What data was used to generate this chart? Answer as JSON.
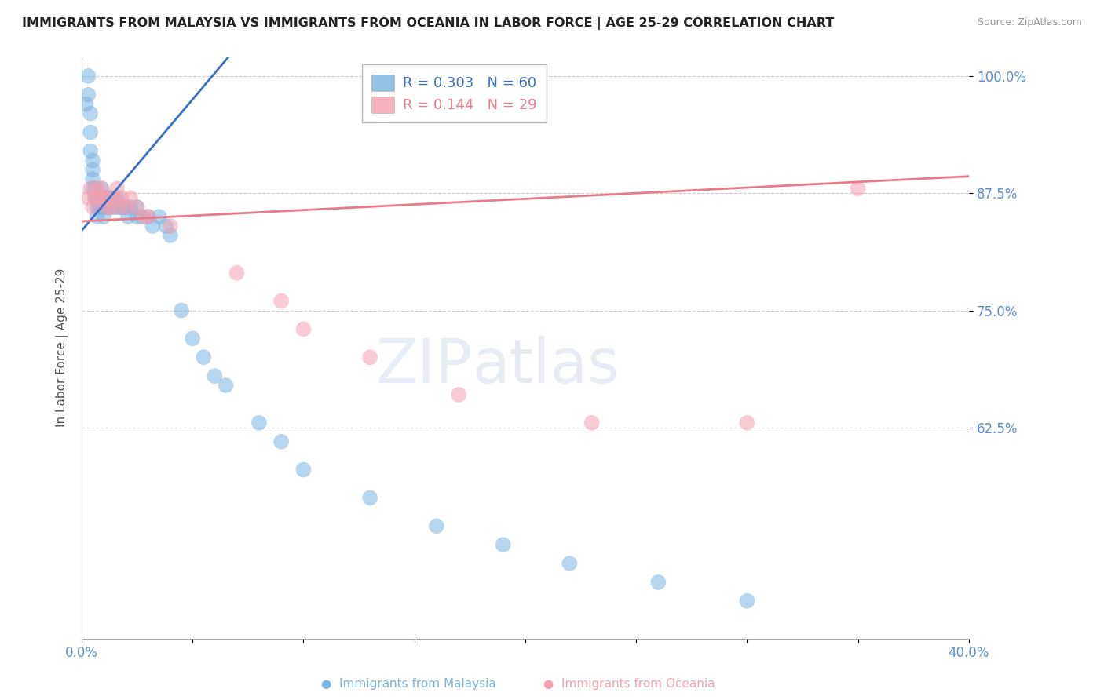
{
  "title": "IMMIGRANTS FROM MALAYSIA VS IMMIGRANTS FROM OCEANIA IN LABOR FORCE | AGE 25-29 CORRELATION CHART",
  "source": "Source: ZipAtlas.com",
  "ylabel": "In Labor Force | Age 25-29",
  "r_malaysia": 0.303,
  "n_malaysia": 60,
  "r_oceania": 0.144,
  "n_oceania": 29,
  "xlim": [
    0.0,
    0.4
  ],
  "ylim": [
    0.4,
    1.02
  ],
  "yticks": [
    0.625,
    0.75,
    0.875,
    1.0
  ],
  "ytick_labels": [
    "62.5%",
    "75.0%",
    "87.5%",
    "100.0%"
  ],
  "xticks": [
    0.0,
    0.05,
    0.1,
    0.15,
    0.2,
    0.25,
    0.3,
    0.35,
    0.4
  ],
  "xtick_labels": [
    "0.0%",
    "",
    "",
    "",
    "",
    "",
    "",
    "",
    "40.0%"
  ],
  "color_malaysia": "#7ab3e0",
  "color_oceania": "#f4a0b0",
  "line_color_malaysia": "#3a6fc4",
  "line_color_oceania": "#e87a8a",
  "color_axis_labels": "#5b8dd4",
  "background_color": "#ffffff",
  "malaysia_x": [
    0.002,
    0.003,
    0.003,
    0.004,
    0.004,
    0.004,
    0.005,
    0.005,
    0.005,
    0.005,
    0.006,
    0.006,
    0.007,
    0.007,
    0.007,
    0.008,
    0.008,
    0.009,
    0.009,
    0.009,
    0.01,
    0.01,
    0.01,
    0.011,
    0.011,
    0.012,
    0.012,
    0.013,
    0.014,
    0.015,
    0.015,
    0.016,
    0.017,
    0.018,
    0.019,
    0.02,
    0.021,
    0.022,
    0.025,
    0.025,
    0.027,
    0.03,
    0.032,
    0.035,
    0.038,
    0.04,
    0.045,
    0.05,
    0.055,
    0.06,
    0.065,
    0.08,
    0.09,
    0.1,
    0.13,
    0.16,
    0.19,
    0.22,
    0.26,
    0.3
  ],
  "malaysia_y": [
    0.97,
    1.0,
    0.98,
    0.96,
    0.94,
    0.92,
    0.91,
    0.9,
    0.89,
    0.88,
    0.88,
    0.87,
    0.87,
    0.86,
    0.85,
    0.87,
    0.86,
    0.88,
    0.87,
    0.86,
    0.87,
    0.86,
    0.85,
    0.87,
    0.86,
    0.87,
    0.86,
    0.87,
    0.86,
    0.87,
    0.86,
    0.87,
    0.86,
    0.86,
    0.86,
    0.86,
    0.85,
    0.86,
    0.86,
    0.85,
    0.85,
    0.85,
    0.84,
    0.85,
    0.84,
    0.83,
    0.75,
    0.72,
    0.7,
    0.68,
    0.67,
    0.63,
    0.61,
    0.58,
    0.55,
    0.52,
    0.5,
    0.48,
    0.46,
    0.44
  ],
  "oceania_x": [
    0.003,
    0.004,
    0.005,
    0.006,
    0.007,
    0.008,
    0.009,
    0.01,
    0.011,
    0.012,
    0.013,
    0.015,
    0.016,
    0.017,
    0.018,
    0.02,
    0.022,
    0.025,
    0.028,
    0.03,
    0.04,
    0.07,
    0.09,
    0.1,
    0.13,
    0.17,
    0.23,
    0.3,
    0.35
  ],
  "oceania_y": [
    0.87,
    0.88,
    0.86,
    0.87,
    0.88,
    0.87,
    0.88,
    0.87,
    0.86,
    0.87,
    0.86,
    0.87,
    0.88,
    0.86,
    0.87,
    0.86,
    0.87,
    0.86,
    0.85,
    0.85,
    0.84,
    0.79,
    0.76,
    0.73,
    0.7,
    0.66,
    0.63,
    0.63,
    0.88
  ]
}
